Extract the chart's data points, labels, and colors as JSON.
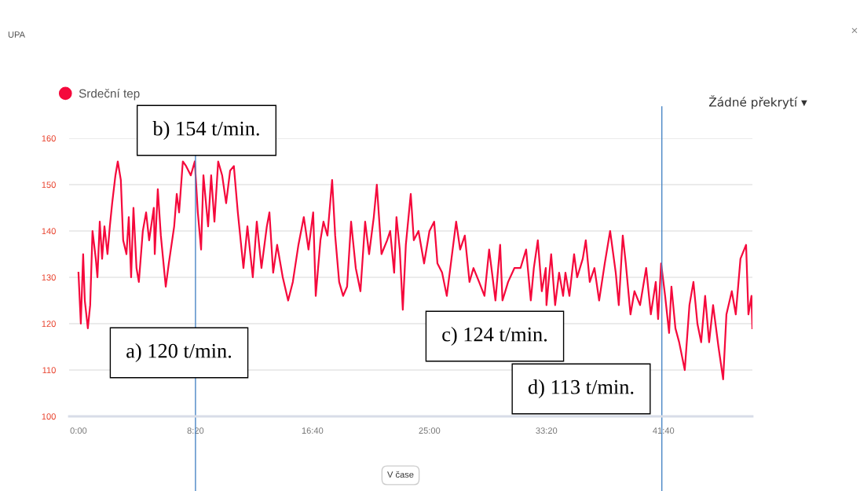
{
  "chart_data": {
    "type": "line",
    "title": "UPA",
    "x": [
      0,
      10,
      20,
      27,
      40,
      50,
      60,
      74,
      81,
      91,
      101,
      111,
      124,
      134,
      144,
      158,
      168,
      181,
      191,
      205,
      215,
      225,
      235,
      248,
      258,
      275,
      289,
      302,
      322,
      326,
      339,
      352,
      373,
      386,
      409,
      420,
      430,
      446,
      460,
      480,
      497,
      510,
      524,
      534,
      554,
      567,
      581,
      597,
      614,
      631,
      648,
      664,
      681,
      705,
      722,
      745,
      762,
      782,
      805,
      816,
      832,
      849,
      873,
      896,
      916,
      940,
      963,
      983,
      1003,
      1014,
      1034,
      1047,
      1064,
      1084,
      1097,
      1114,
      1131,
      1148,
      1165,
      1185,
      1205,
      1225,
      1242,
      1262,
      1275,
      1295,
      1319,
      1332,
      1349,
      1359,
      1373,
      1386,
      1399,
      1420,
      1433,
      1453,
      1477,
      1500,
      1520,
      1534,
      1554,
      1574,
      1594,
      1614,
      1631,
      1651,
      1671,
      1688,
      1712,
      1735,
      1755,
      1782,
      1802,
      1812,
      1836,
      1863,
      1889,
      1913,
      1933,
      1946,
      1963,
      1980,
      1997,
      2000,
      2020,
      2037,
      2054,
      2071,
      2081,
      2098,
      2118,
      2131,
      2155,
      2168,
      2185,
      2205,
      2225,
      2249,
      2272,
      2296,
      2309,
      2326,
      2339,
      2359,
      2376,
      2400,
      2426,
      2446,
      2467,
      2477,
      2490,
      2507,
      2524,
      2534,
      2551,
      2567,
      2591,
      2611,
      2628,
      2645,
      2661,
      2678,
      2695,
      2712,
      2735,
      2755,
      2769,
      2792,
      2809,
      2829,
      2853,
      2863,
      2876,
      2880
    ],
    "series": [
      {
        "name": "Srdeční tep",
        "color": "#f5093c",
        "values": [
          131,
          120,
          135,
          125,
          119,
          124,
          140,
          134,
          130,
          142,
          134,
          141,
          135,
          141,
          146,
          152,
          155,
          151,
          138,
          135,
          143,
          130,
          145,
          132,
          129,
          140,
          144,
          138,
          145,
          135,
          149,
          139,
          128,
          133,
          141,
          148,
          144,
          155,
          154,
          152,
          155,
          144,
          136,
          152,
          141,
          152,
          142,
          155,
          152,
          146,
          153,
          154,
          144,
          132,
          141,
          130,
          142,
          132,
          141,
          144,
          131,
          137,
          130,
          125,
          129,
          137,
          143,
          136,
          144,
          126,
          138,
          142,
          139,
          151,
          139,
          129,
          126,
          128,
          142,
          132,
          127,
          142,
          135,
          143,
          150,
          135,
          138,
          140,
          131,
          143,
          136,
          123,
          137,
          148,
          138,
          140,
          133,
          140,
          142,
          133,
          131,
          126,
          134,
          142,
          136,
          139,
          129,
          132,
          129,
          126,
          136,
          125,
          137,
          125,
          129,
          132,
          132,
          136,
          125,
          132,
          138,
          127,
          132,
          124,
          135,
          124,
          131,
          126,
          131,
          126,
          135,
          130,
          134,
          138,
          129,
          132,
          125,
          133,
          140,
          131,
          124,
          139,
          133,
          122,
          127,
          124,
          132,
          122,
          129,
          121,
          133,
          126,
          118,
          128,
          119,
          116,
          110,
          124,
          129,
          120,
          116,
          126,
          116,
          124,
          115,
          108,
          122,
          127,
          122,
          134,
          137,
          122,
          126,
          119
        ]
      }
    ],
    "xlim": [
      -40,
      2880
    ],
    "ylim": [
      100,
      160
    ],
    "xticks": [
      {
        "value": 0,
        "label": "0:00"
      },
      {
        "value": 500,
        "label": "8:20"
      },
      {
        "value": 1000,
        "label": "16:40"
      },
      {
        "value": 1500,
        "label": "25:00"
      },
      {
        "value": 2000,
        "label": "33:20"
      },
      {
        "value": 2500,
        "label": "41:40"
      }
    ],
    "yticks": [
      100,
      110,
      120,
      130,
      140,
      150,
      160
    ],
    "grid": "y",
    "legend": "top left",
    "marker": "none",
    "line_style": "solid",
    "ref_lines": [
      {
        "axis": "x",
        "value": 500,
        "color": "#4a86c5"
      },
      {
        "axis": "x",
        "value": 2493,
        "color": "#4a86c5"
      }
    ],
    "annotations": [
      "a) 120 t/min.",
      "b) 154 t/min.",
      "c) 124 t/min.",
      "d) 113 t/min.",
      "Žádné překrytí ▾",
      "V čase",
      "×"
    ]
  }
}
